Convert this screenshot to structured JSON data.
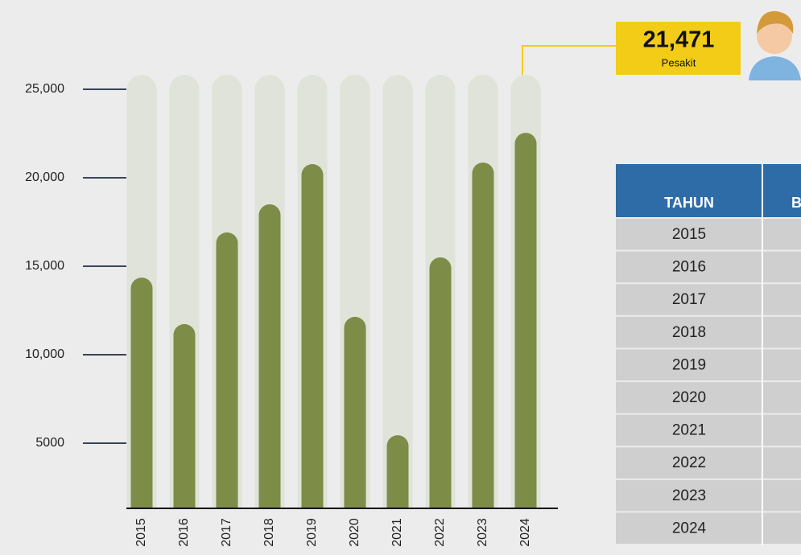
{
  "chart_data": {
    "type": "bar",
    "categories": [
      "2015",
      "2016",
      "2017",
      "2018",
      "2019",
      "2020",
      "2021",
      "2022",
      "2023",
      "2024"
    ],
    "values": [
      14360,
      11730,
      16910,
      18500,
      20770,
      12140,
      5450,
      15500,
      20860,
      22540
    ],
    "color": "#7d8c47",
    "ylim": [
      1318,
      25818
    ],
    "yticks": [
      5000,
      {
        "value": 10000,
        "label": "10,000"
      },
      {
        "value": 15000,
        "label": "15,000"
      },
      {
        "value": 20000,
        "label": "20,000"
      },
      {
        "value": 25000,
        "label": "25,000"
      }
    ],
    "annotation": {
      "value": "21,471",
      "unit": "Pesakit"
    }
  },
  "table": {
    "header": [
      "TAHUN",
      "B"
    ],
    "rows": [
      "2015",
      "2016",
      "2017",
      "2018",
      "2019",
      "2020",
      "2021",
      "2022",
      "2023",
      "2024"
    ]
  }
}
